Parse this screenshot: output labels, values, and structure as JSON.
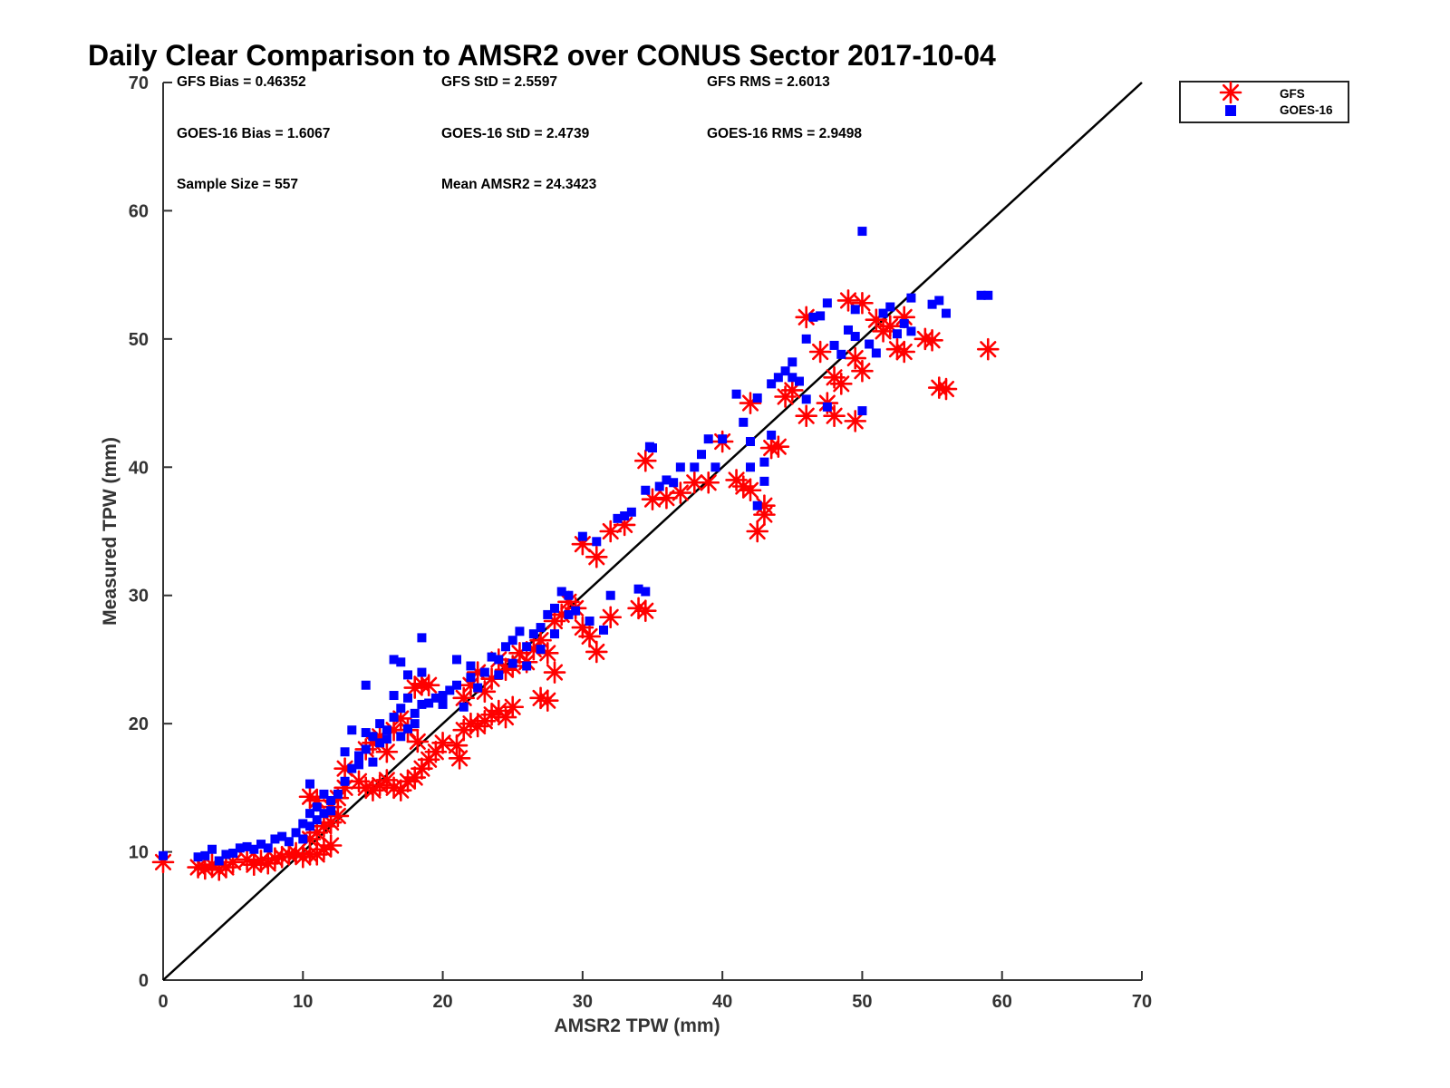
{
  "chart_data": {
    "type": "scatter",
    "title": "Daily Clear Comparison to AMSR2 over CONUS Sector 2017-10-04",
    "xlabel": "AMSR2 TPW (mm)",
    "ylabel": "Measured TPW (mm)",
    "xlim": [
      0,
      70
    ],
    "ylim": [
      0,
      70
    ],
    "xticks": [
      "0",
      "10",
      "20",
      "30",
      "40",
      "50",
      "60",
      "70"
    ],
    "yticks": [
      "0",
      "10",
      "20",
      "30",
      "40",
      "50",
      "60",
      "70"
    ],
    "grid": false,
    "legend_position": "outside top-right",
    "reference_line": {
      "from": [
        0,
        0
      ],
      "to": [
        70,
        70
      ],
      "color": "#000000"
    },
    "stats": {
      "gfs_bias": "GFS Bias = 0.46352",
      "gfs_std": "GFS StD = 2.5597",
      "gfs_rms": "GFS RMS = 2.6013",
      "goes_bias": "GOES-16 Bias = 1.6067",
      "goes_std": "GOES-16 StD = 2.4739",
      "goes_rms": "GOES-16 RMS = 2.9498",
      "sample_size": "Sample Size = 557",
      "mean_amsr2": "Mean AMSR2 = 24.3423"
    },
    "series": [
      {
        "name": "GFS",
        "marker": "asterisk",
        "color": "#ff0000",
        "points": [
          [
            0,
            9.2
          ],
          [
            2.5,
            8.8
          ],
          [
            3,
            8.7
          ],
          [
            3.5,
            9
          ],
          [
            4,
            8.6
          ],
          [
            4.5,
            8.8
          ],
          [
            5,
            9.2
          ],
          [
            6,
            9.4
          ],
          [
            6.5,
            9
          ],
          [
            7,
            9.3
          ],
          [
            7.5,
            9.1
          ],
          [
            8,
            9.5
          ],
          [
            8.5,
            9.6
          ],
          [
            9,
            9.8
          ],
          [
            9.5,
            9.9
          ],
          [
            10,
            9.6
          ],
          [
            10.5,
            9.8
          ],
          [
            11,
            9.8
          ],
          [
            11.5,
            10.2
          ],
          [
            12,
            10.5
          ],
          [
            10.5,
            11
          ],
          [
            11,
            11.5
          ],
          [
            11.5,
            12
          ],
          [
            12,
            12.3
          ],
          [
            12.5,
            12.8
          ],
          [
            10.5,
            14.3
          ],
          [
            11,
            14
          ],
          [
            12,
            13.5
          ],
          [
            12.5,
            14.2
          ],
          [
            13,
            15
          ],
          [
            13,
            16.5
          ],
          [
            14,
            15.5
          ],
          [
            14.5,
            15
          ],
          [
            15,
            14.8
          ],
          [
            15.5,
            15.2
          ],
          [
            16,
            15.6
          ],
          [
            16.5,
            15
          ],
          [
            17,
            14.8
          ],
          [
            17.5,
            15.5
          ],
          [
            18,
            15.8
          ],
          [
            18.5,
            16.5
          ],
          [
            19,
            17.2
          ],
          [
            19.5,
            17.8
          ],
          [
            20,
            18.5
          ],
          [
            14.5,
            18
          ],
          [
            15,
            18.5
          ],
          [
            15.5,
            19
          ],
          [
            16,
            17.8
          ],
          [
            16.5,
            19.5
          ],
          [
            17,
            20.4
          ],
          [
            18,
            22.8
          ],
          [
            18.5,
            23.1
          ],
          [
            19,
            23
          ],
          [
            17.5,
            19.5
          ],
          [
            18.2,
            18.6
          ],
          [
            21,
            18.3
          ],
          [
            21.2,
            17.3
          ],
          [
            21.5,
            19.5
          ],
          [
            22,
            20
          ],
          [
            22.5,
            19.8
          ],
          [
            23,
            20.2
          ],
          [
            23.5,
            20.7
          ],
          [
            24,
            21
          ],
          [
            24.5,
            20.5
          ],
          [
            25,
            21.3
          ],
          [
            21.5,
            22
          ],
          [
            22,
            23
          ],
          [
            22.5,
            24
          ],
          [
            23,
            22.5
          ],
          [
            23.5,
            23.5
          ],
          [
            24,
            25
          ],
          [
            24.5,
            24.2
          ],
          [
            25,
            24.5
          ],
          [
            25.5,
            25.5
          ],
          [
            26,
            24.8
          ],
          [
            26.5,
            25.8
          ],
          [
            27,
            26.5
          ],
          [
            27.5,
            25.5
          ],
          [
            27,
            22
          ],
          [
            27.5,
            21.8
          ],
          [
            28,
            24
          ],
          [
            28,
            28
          ],
          [
            28.5,
            28.5
          ],
          [
            29,
            29.5
          ],
          [
            29.5,
            29
          ],
          [
            30,
            27.5
          ],
          [
            30.5,
            26.8
          ],
          [
            31,
            25.6
          ],
          [
            30,
            34
          ],
          [
            31,
            33
          ],
          [
            32,
            28.3
          ],
          [
            32,
            35
          ],
          [
            33,
            35.5
          ],
          [
            34,
            29
          ],
          [
            34.5,
            28.8
          ],
          [
            34.5,
            40.5
          ],
          [
            35,
            37.5
          ],
          [
            36,
            37.6
          ],
          [
            37,
            38
          ],
          [
            38,
            38.8
          ],
          [
            39,
            38.8
          ],
          [
            40,
            42
          ],
          [
            41,
            39
          ],
          [
            41.5,
            38.5
          ],
          [
            42,
            38.2
          ],
          [
            42,
            45
          ],
          [
            42.5,
            35
          ],
          [
            43,
            37
          ],
          [
            43,
            36.3
          ],
          [
            43.5,
            41.5
          ],
          [
            44,
            41.6
          ],
          [
            44.5,
            45.5
          ],
          [
            45,
            46
          ],
          [
            46,
            44
          ],
          [
            46,
            51.7
          ],
          [
            47,
            49
          ],
          [
            47.5,
            45
          ],
          [
            48,
            44
          ],
          [
            48,
            47
          ],
          [
            48.5,
            46.5
          ],
          [
            49,
            53
          ],
          [
            49.5,
            48.5
          ],
          [
            49.5,
            43.6
          ],
          [
            50,
            52.8
          ],
          [
            50,
            47.5
          ],
          [
            51,
            51.5
          ],
          [
            51.5,
            50.6
          ],
          [
            52,
            51
          ],
          [
            52.5,
            49.2
          ],
          [
            53,
            51.7
          ],
          [
            53,
            49
          ],
          [
            54.5,
            50
          ],
          [
            55,
            49.9
          ],
          [
            55.5,
            46.2
          ],
          [
            56,
            46.1
          ],
          [
            59,
            49.2
          ]
        ]
      },
      {
        "name": "GOES-16",
        "marker": "square",
        "color": "#0000ff",
        "points": [
          [
            0,
            9.7
          ],
          [
            2.5,
            9.6
          ],
          [
            3,
            9.7
          ],
          [
            3.5,
            10.2
          ],
          [
            4,
            9.3
          ],
          [
            4.5,
            9.8
          ],
          [
            5,
            9.9
          ],
          [
            5.5,
            10.3
          ],
          [
            6,
            10.4
          ],
          [
            6.5,
            10.2
          ],
          [
            7,
            10.6
          ],
          [
            7.5,
            10.3
          ],
          [
            8,
            11
          ],
          [
            8.5,
            11.2
          ],
          [
            9,
            10.8
          ],
          [
            9.5,
            11.5
          ],
          [
            10,
            11
          ],
          [
            10,
            12.2
          ],
          [
            10.5,
            12
          ],
          [
            10.5,
            13
          ],
          [
            11,
            12.5
          ],
          [
            11,
            13.5
          ],
          [
            11.5,
            13
          ],
          [
            11.5,
            14.5
          ],
          [
            12,
            13.2
          ],
          [
            10.5,
            15.3
          ],
          [
            12,
            14
          ],
          [
            12.5,
            14.5
          ],
          [
            13,
            15.5
          ],
          [
            13,
            17.8
          ],
          [
            13.5,
            16.5
          ],
          [
            13.5,
            19.5
          ],
          [
            14,
            16.8
          ],
          [
            14,
            17.5
          ],
          [
            14.5,
            18
          ],
          [
            14.5,
            23
          ],
          [
            14.5,
            19.3
          ],
          [
            15,
            17
          ],
          [
            15,
            19
          ],
          [
            15.5,
            18.5
          ],
          [
            15.5,
            20
          ],
          [
            16,
            18.8
          ],
          [
            16,
            19.5
          ],
          [
            16.5,
            20.5
          ],
          [
            16.5,
            22.2
          ],
          [
            16.5,
            25
          ],
          [
            17,
            19
          ],
          [
            17,
            21.2
          ],
          [
            17,
            24.8
          ],
          [
            17.5,
            22
          ],
          [
            17.5,
            19.6
          ],
          [
            17.5,
            23.8
          ],
          [
            18,
            20
          ],
          [
            18,
            20.8
          ],
          [
            18.5,
            21.5
          ],
          [
            18.5,
            26.7
          ],
          [
            18.5,
            24
          ],
          [
            19,
            21.6
          ],
          [
            19.5,
            22
          ],
          [
            20,
            21.5
          ],
          [
            20,
            22.2
          ],
          [
            20.5,
            22.6
          ],
          [
            21,
            23
          ],
          [
            21,
            25
          ],
          [
            21.5,
            21.3
          ],
          [
            22,
            23.6
          ],
          [
            22,
            24.5
          ],
          [
            22.5,
            22.8
          ],
          [
            23,
            24
          ],
          [
            23.5,
            25.2
          ],
          [
            24,
            25
          ],
          [
            24,
            23.8
          ],
          [
            24.5,
            26
          ],
          [
            25,
            24.7
          ],
          [
            25,
            26.5
          ],
          [
            25.5,
            27.2
          ],
          [
            26,
            26
          ],
          [
            26,
            24.5
          ],
          [
            26.5,
            27
          ],
          [
            27,
            27.5
          ],
          [
            27,
            25.8
          ],
          [
            27.5,
            28.5
          ],
          [
            28,
            29
          ],
          [
            28,
            27
          ],
          [
            28.5,
            30.3
          ],
          [
            29,
            30
          ],
          [
            29,
            28.5
          ],
          [
            29.5,
            28.8
          ],
          [
            30,
            34.6
          ],
          [
            30.5,
            28
          ],
          [
            31,
            34.2
          ],
          [
            31.5,
            27.3
          ],
          [
            32,
            30
          ],
          [
            32.5,
            36
          ],
          [
            33,
            36.2
          ],
          [
            33.5,
            36.5
          ],
          [
            34,
            30.5
          ],
          [
            34.5,
            30.3
          ],
          [
            34.5,
            38.2
          ],
          [
            34.8,
            41.6
          ],
          [
            35,
            41.5
          ],
          [
            35.5,
            38.5
          ],
          [
            36,
            39
          ],
          [
            36.5,
            38.8
          ],
          [
            37,
            40
          ],
          [
            38,
            40
          ],
          [
            38.5,
            41
          ],
          [
            39,
            42.2
          ],
          [
            39.5,
            40
          ],
          [
            40,
            42.2
          ],
          [
            41,
            45.7
          ],
          [
            41.5,
            43.5
          ],
          [
            42,
            40
          ],
          [
            42,
            42
          ],
          [
            42.5,
            45.4
          ],
          [
            42.5,
            37
          ],
          [
            43,
            38.9
          ],
          [
            43,
            40.4
          ],
          [
            43.5,
            42.5
          ],
          [
            43.5,
            46.5
          ],
          [
            44,
            47
          ],
          [
            44.5,
            47.5
          ],
          [
            45,
            47
          ],
          [
            45,
            48.2
          ],
          [
            45.5,
            46.7
          ],
          [
            46,
            45.3
          ],
          [
            46,
            50
          ],
          [
            46.5,
            51.7
          ],
          [
            47,
            51.8
          ],
          [
            47.5,
            52.8
          ],
          [
            47.5,
            44.7
          ],
          [
            48,
            49.5
          ],
          [
            48.5,
            48.8
          ],
          [
            49,
            50.7
          ],
          [
            49.5,
            52.3
          ],
          [
            49.5,
            50.2
          ],
          [
            50,
            58.4
          ],
          [
            50,
            44.4
          ],
          [
            50.5,
            49.6
          ],
          [
            51,
            48.9
          ],
          [
            51.5,
            52
          ],
          [
            52,
            52.5
          ],
          [
            52.5,
            50.4
          ],
          [
            53,
            51.2
          ],
          [
            53.5,
            53.2
          ],
          [
            53.5,
            50.6
          ],
          [
            55,
            52.7
          ],
          [
            55.5,
            53
          ],
          [
            56,
            52
          ],
          [
            58.5,
            53.4
          ],
          [
            59,
            53.4
          ]
        ]
      }
    ]
  }
}
